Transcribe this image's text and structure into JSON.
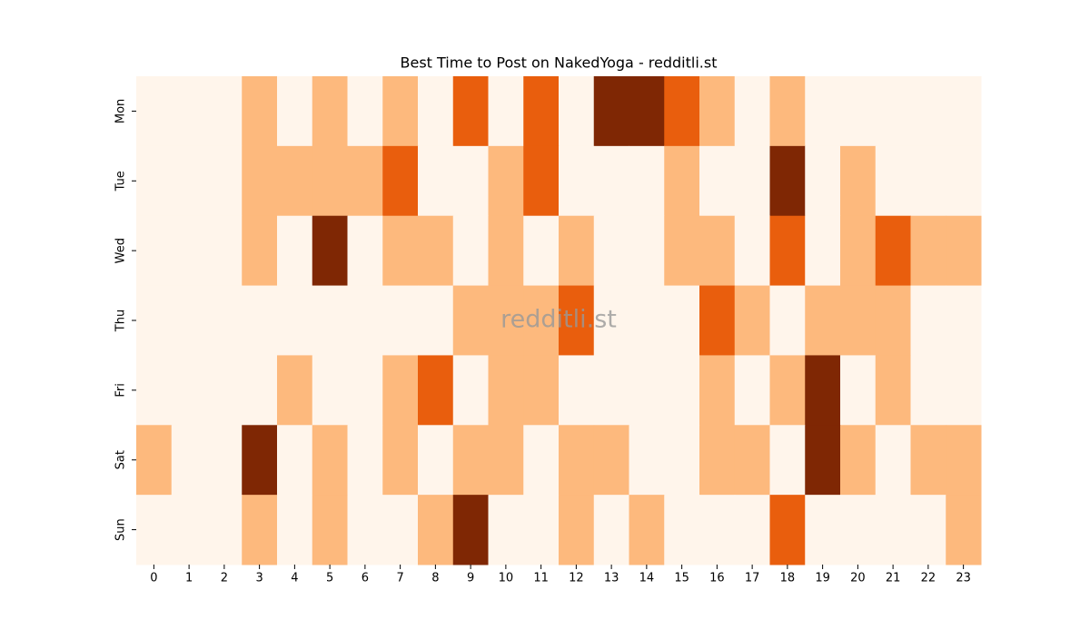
{
  "chart_data": {
    "type": "heatmap",
    "title": "Best Time to Post on NakedYoga - redditli.st",
    "watermark": "redditli.st",
    "x": [
      0,
      1,
      2,
      3,
      4,
      5,
      6,
      7,
      8,
      9,
      10,
      11,
      12,
      13,
      14,
      15,
      16,
      17,
      18,
      19,
      20,
      21,
      22,
      23
    ],
    "y": [
      "Mon",
      "Tue",
      "Wed",
      "Thu",
      "Fri",
      "Sat",
      "Sun"
    ],
    "values": [
      [
        0,
        0,
        0,
        1,
        0,
        1,
        0,
        1,
        0,
        2,
        0,
        2,
        0,
        3,
        3,
        2,
        1,
        0,
        1,
        0,
        0,
        0,
        0,
        0
      ],
      [
        0,
        0,
        0,
        1,
        1,
        1,
        1,
        2,
        0,
        0,
        1,
        2,
        0,
        0,
        0,
        1,
        0,
        0,
        3,
        0,
        1,
        0,
        0,
        0
      ],
      [
        0,
        0,
        0,
        1,
        0,
        3,
        0,
        1,
        1,
        0,
        1,
        0,
        1,
        0,
        0,
        1,
        1,
        0,
        2,
        0,
        1,
        2,
        1,
        1
      ],
      [
        0,
        0,
        0,
        0,
        0,
        0,
        0,
        0,
        0,
        1,
        1,
        1,
        2,
        0,
        0,
        0,
        2,
        1,
        0,
        1,
        1,
        1,
        0,
        0
      ],
      [
        0,
        0,
        0,
        0,
        1,
        0,
        0,
        1,
        2,
        0,
        1,
        1,
        0,
        0,
        0,
        0,
        1,
        0,
        1,
        3,
        0,
        1,
        0,
        0
      ],
      [
        1,
        0,
        0,
        3,
        0,
        1,
        0,
        1,
        0,
        1,
        1,
        0,
        1,
        1,
        0,
        0,
        1,
        1,
        0,
        3,
        1,
        0,
        1,
        1
      ],
      [
        0,
        0,
        0,
        1,
        0,
        1,
        0,
        0,
        1,
        3,
        0,
        0,
        1,
        0,
        1,
        0,
        0,
        0,
        2,
        0,
        0,
        0,
        0,
        1
      ]
    ],
    "vlim": [
      0,
      3
    ],
    "colormap": [
      "#fff5eb",
      "#fdb97d",
      "#e95e0d",
      "#7f2704"
    ]
  }
}
